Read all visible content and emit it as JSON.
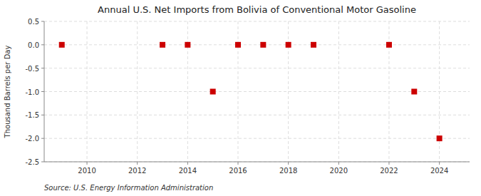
{
  "chart_data": {
    "type": "scatter",
    "title": "Annual U.S. Net Imports from Bolivia of Conventional Motor Gasoline",
    "y_label": "Thousand Barrels per Day",
    "source": "Source: U.S. Energy Information Administration",
    "x": [
      2009,
      2013,
      2014,
      2015,
      2016,
      2017,
      2018,
      2019,
      2022,
      2023,
      2024
    ],
    "values": [
      0,
      0,
      0,
      -1,
      0,
      0,
      0,
      0,
      0,
      -1,
      -2
    ],
    "color": "#cc0000",
    "marker": "square",
    "xlim": [
      2008.3,
      2025.2
    ],
    "ylim": [
      -2.5,
      0.5
    ],
    "xticks": [
      2010,
      2012,
      2014,
      2016,
      2018,
      2020,
      2022,
      2024
    ],
    "yticks": [
      0.5,
      {
        "value": 0,
        "label": "0.0"
      },
      -0.5,
      {
        "value": -1,
        "label": "-1.0"
      },
      -1.5,
      {
        "value": -2,
        "label": "-2.0"
      },
      -2.5
    ],
    "grid": true
  }
}
